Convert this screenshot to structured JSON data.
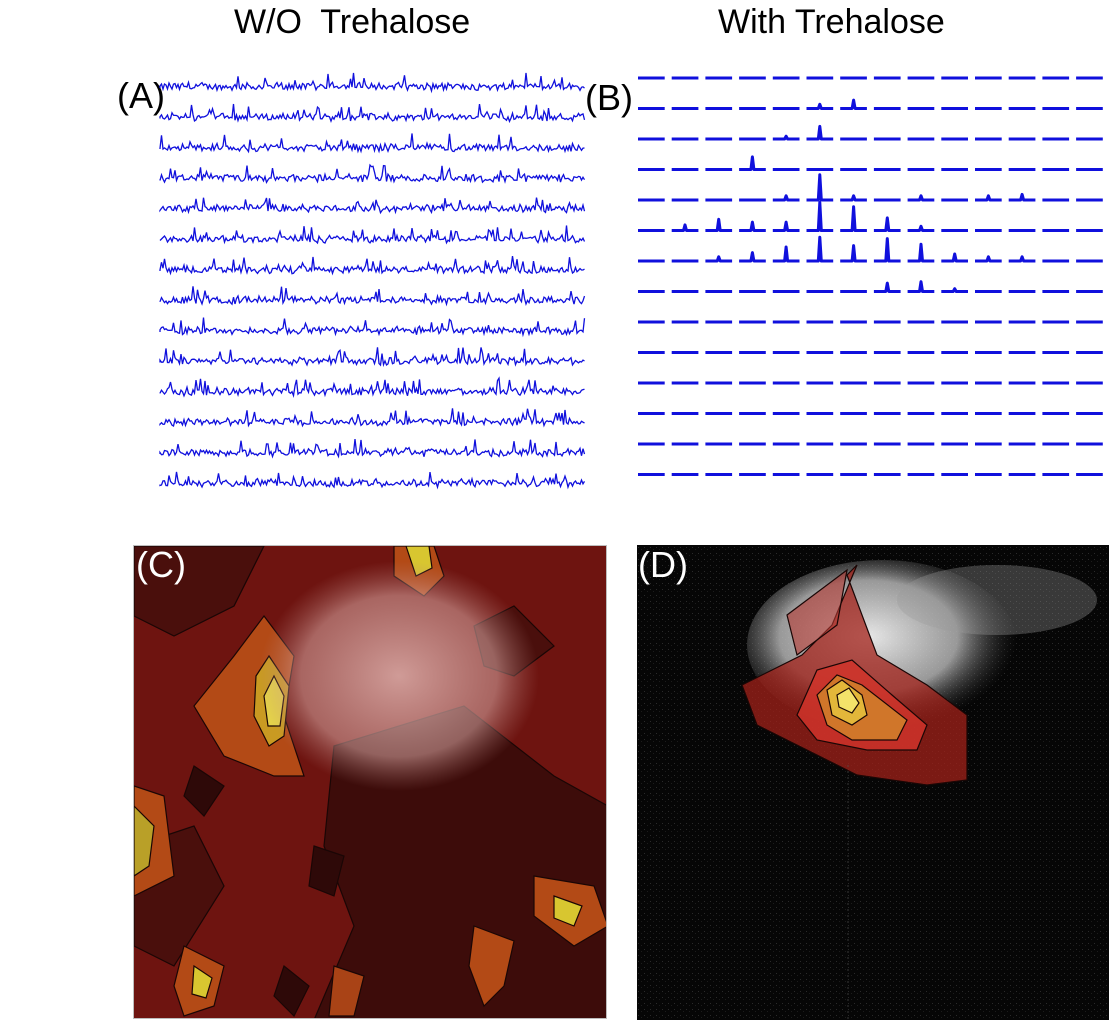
{
  "columns": {
    "left_title": "W/O  Trehalose",
    "right_title": "With Trehalose"
  },
  "panels": {
    "a": {
      "label": "(A)"
    },
    "b": {
      "label": "(B)"
    },
    "c": {
      "label": "(C)"
    },
    "d": {
      "label": "(D)"
    }
  },
  "colors": {
    "spectrum": "#1010dd",
    "overlay_dark": "#4a0f0c",
    "overlay_red": "#8a1a14",
    "overlay_orange": "#c0561a",
    "overlay_yellow": "#d8c630"
  },
  "spectral_grid": {
    "rows": 14,
    "columns": 14,
    "peak_heights_b": [
      [
        0,
        0,
        0,
        0,
        0,
        0,
        0,
        0,
        0,
        0,
        0,
        0,
        0,
        0
      ],
      [
        0,
        0,
        0,
        0,
        0,
        0.15,
        0.3,
        0,
        0,
        0,
        0,
        0,
        0,
        0
      ],
      [
        0,
        0,
        0,
        0,
        0.1,
        0.45,
        0,
        0,
        0,
        0,
        0,
        0,
        0,
        0
      ],
      [
        0,
        0,
        0,
        0.45,
        0,
        0,
        0,
        0,
        0,
        0,
        0,
        0,
        0,
        0
      ],
      [
        0,
        0,
        0,
        0,
        0.15,
        0.9,
        0.15,
        0,
        0.15,
        0,
        0.15,
        0.2,
        0,
        0
      ],
      [
        0,
        0.2,
        0.4,
        0.3,
        0.3,
        1.0,
        0.85,
        0.45,
        0.15,
        0,
        0,
        0,
        0,
        0
      ],
      [
        0,
        0,
        0.15,
        0.3,
        0.5,
        0.85,
        0.55,
        0.8,
        0.6,
        0.25,
        0.15,
        0.15,
        0,
        0
      ],
      [
        0,
        0,
        0,
        0,
        0,
        0,
        0,
        0.3,
        0.35,
        0.1,
        0,
        0,
        0,
        0
      ],
      [
        0,
        0,
        0,
        0,
        0,
        0,
        0,
        0,
        0,
        0,
        0,
        0,
        0,
        0
      ],
      [
        0,
        0,
        0,
        0,
        0,
        0,
        0,
        0,
        0,
        0,
        0,
        0,
        0,
        0
      ],
      [
        0,
        0,
        0,
        0,
        0,
        0,
        0,
        0,
        0,
        0,
        0,
        0,
        0,
        0
      ],
      [
        0,
        0,
        0,
        0,
        0,
        0,
        0,
        0,
        0,
        0,
        0,
        0,
        0,
        0
      ],
      [
        0,
        0,
        0,
        0,
        0,
        0,
        0,
        0,
        0,
        0,
        0,
        0,
        0,
        0
      ],
      [
        0,
        0,
        0,
        0,
        0,
        0,
        0,
        0,
        0,
        0,
        0,
        0,
        0,
        0
      ]
    ]
  }
}
